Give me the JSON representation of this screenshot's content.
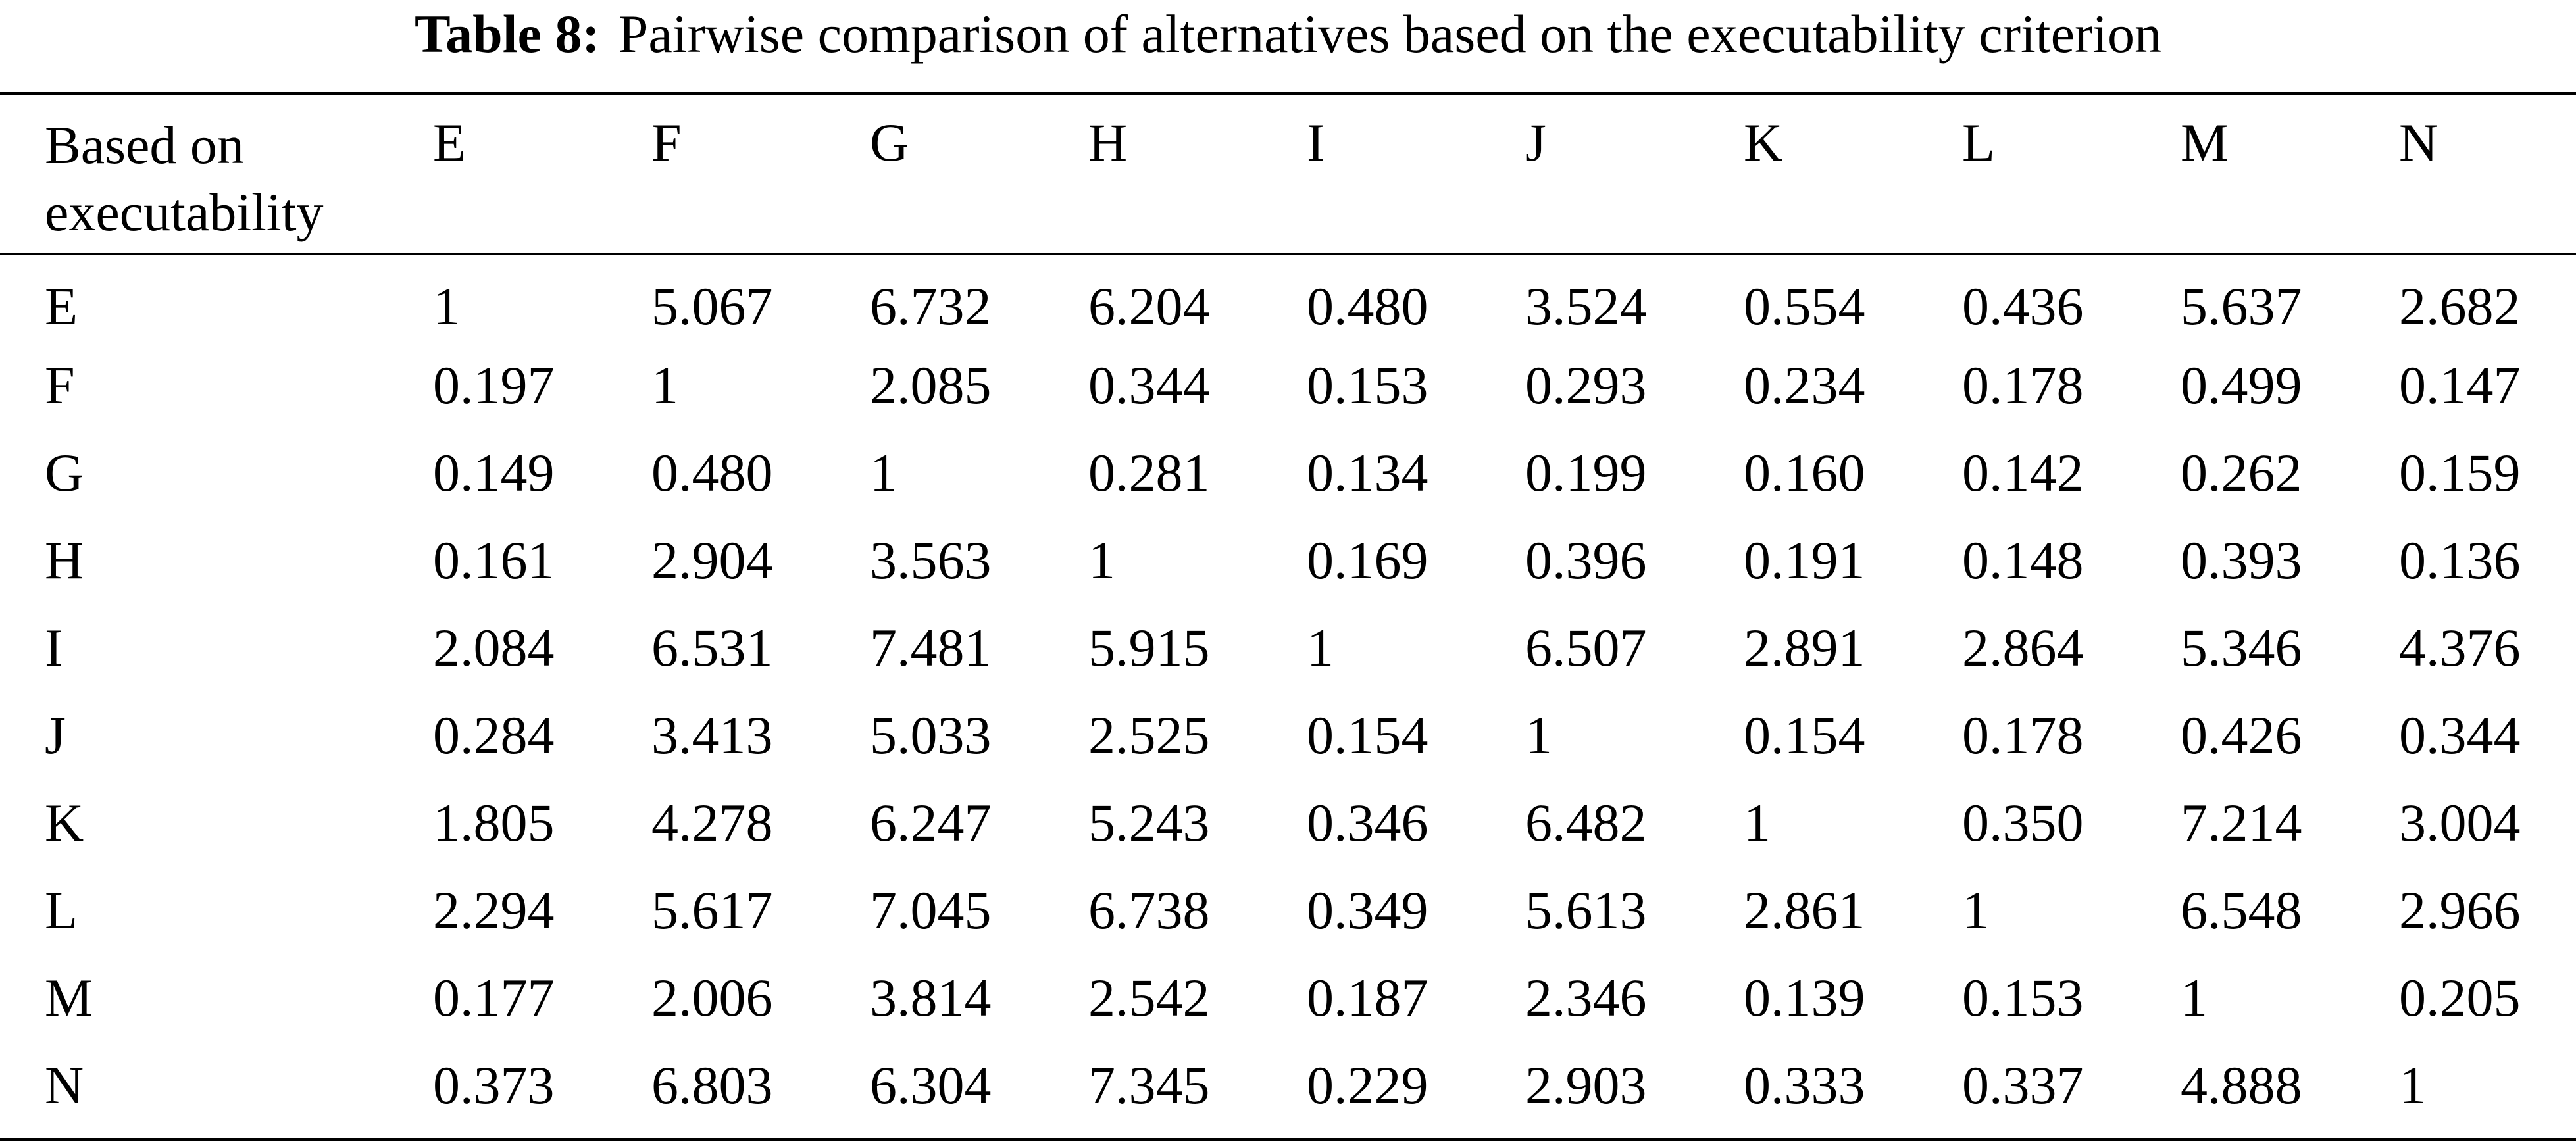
{
  "caption": {
    "label": "Table 8:",
    "text": "Pairwise comparison of alternatives based on the executability criterion"
  },
  "table": {
    "corner_header": "Based on executability",
    "columns": [
      "E",
      "F",
      "G",
      "H",
      "I",
      "J",
      "K",
      "L",
      "M",
      "N"
    ],
    "rows": [
      {
        "label": "E",
        "values": [
          "1",
          "5.067",
          "6.732",
          "6.204",
          "0.480",
          "3.524",
          "0.554",
          "0.436",
          "5.637",
          "2.682"
        ]
      },
      {
        "label": "F",
        "values": [
          "0.197",
          "1",
          "2.085",
          "0.344",
          "0.153",
          "0.293",
          "0.234",
          "0.178",
          "0.499",
          "0.147"
        ]
      },
      {
        "label": "G",
        "values": [
          "0.149",
          "0.480",
          "1",
          "0.281",
          "0.134",
          "0.199",
          "0.160",
          "0.142",
          "0.262",
          "0.159"
        ]
      },
      {
        "label": "H",
        "values": [
          "0.161",
          "2.904",
          "3.563",
          "1",
          "0.169",
          "0.396",
          "0.191",
          "0.148",
          "0.393",
          "0.136"
        ]
      },
      {
        "label": "I",
        "values": [
          "2.084",
          "6.531",
          "7.481",
          "5.915",
          "1",
          "6.507",
          "2.891",
          "2.864",
          "5.346",
          "4.376"
        ]
      },
      {
        "label": "J",
        "values": [
          "0.284",
          "3.413",
          "5.033",
          "2.525",
          "0.154",
          "1",
          "0.154",
          "0.178",
          "0.426",
          "0.344"
        ]
      },
      {
        "label": "K",
        "values": [
          "1.805",
          "4.278",
          "6.247",
          "5.243",
          "0.346",
          "6.482",
          "1",
          "0.350",
          "7.214",
          "3.004"
        ]
      },
      {
        "label": "L",
        "values": [
          "2.294",
          "5.617",
          "7.045",
          "6.738",
          "0.349",
          "5.613",
          "2.861",
          "1",
          "6.548",
          "2.966"
        ]
      },
      {
        "label": "M",
        "values": [
          "0.177",
          "2.006",
          "3.814",
          "2.542",
          "0.187",
          "2.346",
          "0.139",
          "0.153",
          "1",
          "0.205"
        ]
      },
      {
        "label": "N",
        "values": [
          "0.373",
          "6.803",
          "6.304",
          "7.345",
          "0.229",
          "2.903",
          "0.333",
          "0.337",
          "4.888",
          "1"
        ]
      }
    ]
  }
}
